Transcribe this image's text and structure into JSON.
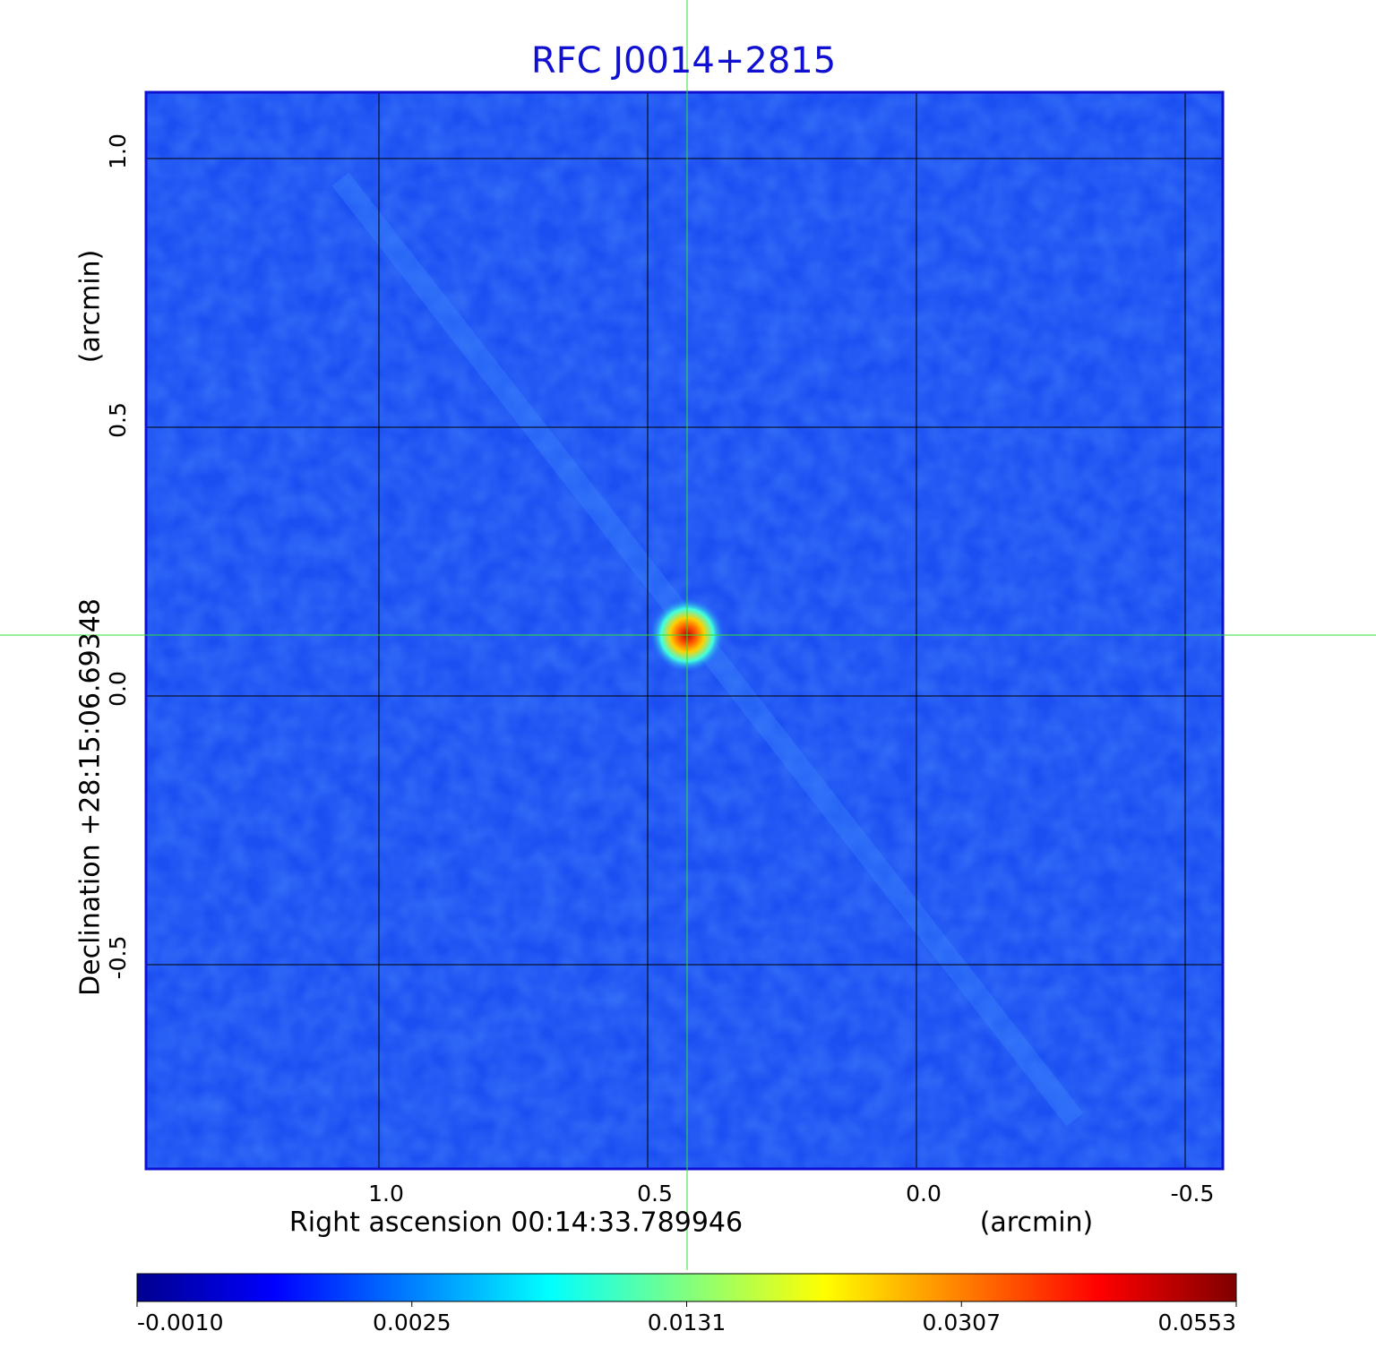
{
  "chart_data": {
    "type": "image",
    "title": "RFC J0014+2815",
    "x_label": "Right ascension  00:14:33.789946",
    "x_unit": "(arcmin)",
    "y_label": "Declination  +28:15:06.69348",
    "y_unit": "(arcmin)",
    "xlim": [
      1.4333,
      -0.57
    ],
    "ylim": [
      -0.88,
      1.1233
    ],
    "xticks": [
      {
        "value": 1,
        "label": "1.0"
      },
      0.5,
      {
        "value": 0,
        "label": "0.0"
      },
      -0.5
    ],
    "yticks": [
      {
        "value": 1,
        "label": "1.0"
      },
      0.5,
      {
        "value": 0,
        "label": "0.0"
      },
      -0.5
    ],
    "grid": true,
    "grid_color": "#000000",
    "colorbar": {
      "ticks": [
        {
          "value": -0.001,
          "label": "-0.0010"
        },
        0.0025,
        0.0131,
        0.0307,
        0.0553
      ],
      "colors": [
        "#00008f",
        "#0000ff",
        "#0080ff",
        "#00ffff",
        "#80ff80",
        "#ffff00",
        "#ff8000",
        "#ff0000",
        "#800000"
      ]
    }
  }
}
